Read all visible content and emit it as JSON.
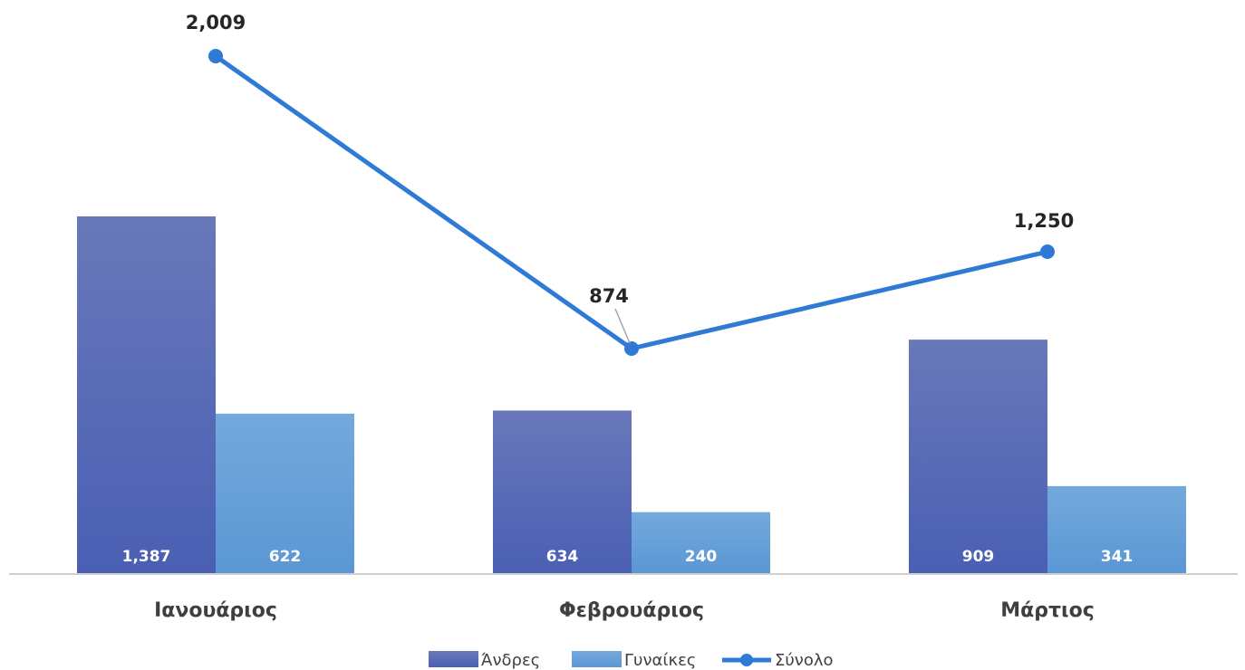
{
  "chart_data": {
    "type": "bar",
    "categories": [
      "Ιανουάριος",
      "Φεβρουάριος",
      "Μάρτιος"
    ],
    "series": [
      {
        "name": "Άνδρες",
        "type": "bar",
        "values": [
          1387,
          634,
          909
        ],
        "labels": [
          "1,387",
          "634",
          "909"
        ],
        "color": "#4a5fb4",
        "color_top": "#6878b9"
      },
      {
        "name": "Γυναίκες",
        "type": "bar",
        "values": [
          622,
          240,
          341
        ],
        "labels": [
          "622",
          "240",
          "341"
        ],
        "color": "#5a97d4",
        "color_top": "#74a9dc"
      },
      {
        "name": "Σύνολο",
        "type": "line",
        "values": [
          2009,
          874,
          1250
        ],
        "labels": [
          "2,009",
          "874",
          "1,250"
        ],
        "color": "#2e7ad6"
      }
    ],
    "legend_position": "bottom",
    "grid": false,
    "axis_color": "#d0d0d0"
  }
}
